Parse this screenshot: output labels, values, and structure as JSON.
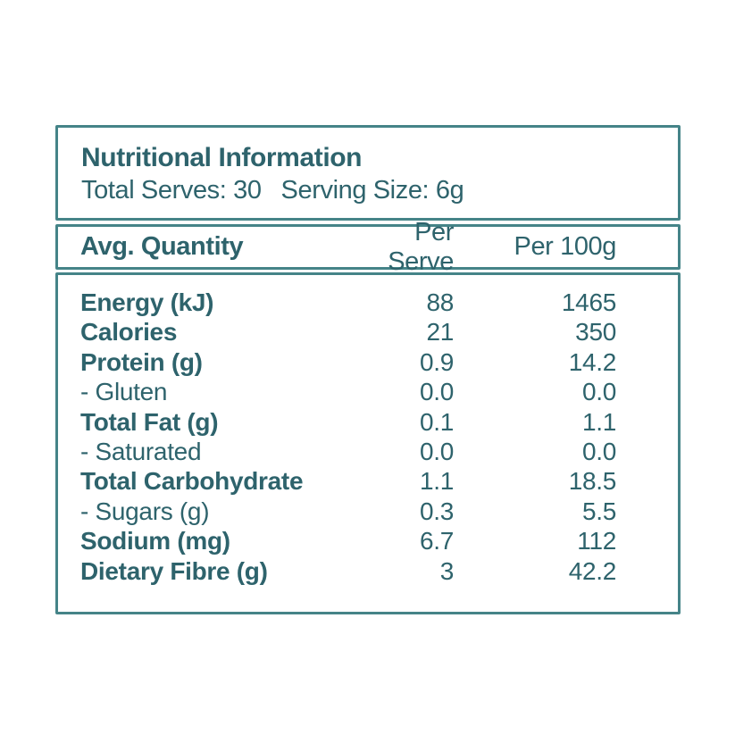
{
  "colors": {
    "text": "#2E636C",
    "border": "#458488",
    "background": "#FFFFFF"
  },
  "panel": {
    "title": "Nutritional Information",
    "total_serves": "Total Serves: 30",
    "serving_size": "Serving Size: 6g"
  },
  "table": {
    "columns": [
      "Avg. Quantity",
      "Per Serve",
      "Per 100g"
    ],
    "rows": [
      {
        "label": "Energy (kJ)",
        "per_serve": "88",
        "per_100g": "1465",
        "bold": true
      },
      {
        "label": "Calories",
        "per_serve": "21",
        "per_100g": "350",
        "bold": true
      },
      {
        "label": "Protein (g)",
        "per_serve": "0.9",
        "per_100g": "14.2",
        "bold": true
      },
      {
        "label": "- Gluten",
        "per_serve": "0.0",
        "per_100g": "0.0",
        "bold": false
      },
      {
        "label": "Total Fat (g)",
        "per_serve": "0.1",
        "per_100g": "1.1",
        "bold": true
      },
      {
        "label": "- Saturated",
        "per_serve": "0.0",
        "per_100g": "0.0",
        "bold": false
      },
      {
        "label": "Total Carbohydrate",
        "per_serve": "1.1",
        "per_100g": "18.5",
        "bold": true
      },
      {
        "label": "- Sugars (g)",
        "per_serve": "0.3",
        "per_100g": "5.5",
        "bold": false
      },
      {
        "label": "Sodium (mg)",
        "per_serve": "6.7",
        "per_100g": "112",
        "bold": true
      },
      {
        "label": "Dietary Fibre (g)",
        "per_serve": "3",
        "per_100g": "42.2",
        "bold": true
      }
    ]
  }
}
